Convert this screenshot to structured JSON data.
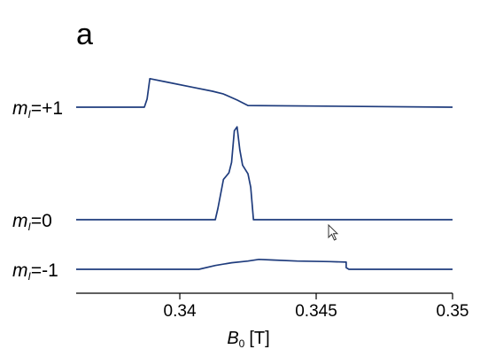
{
  "chart_data": {
    "type": "line",
    "panel_label": "a",
    "xlabel": {
      "symbol": "B",
      "subscript": "0",
      "unit": "[T]"
    },
    "xlim": [
      0.3362,
      0.35
    ],
    "xticks": [
      {
        "value": 0.34,
        "label": "0.34"
      },
      {
        "value": 0.345,
        "label": "0.345"
      },
      {
        "value": 0.35,
        "label": "0.35"
      }
    ],
    "grid": false,
    "series": [
      {
        "name": "m_I=+1",
        "label": {
          "symbol": "m",
          "subscript": "I",
          "value": "=+1"
        },
        "x": [
          0.3362,
          0.3387,
          0.3388,
          0.3389,
          0.3395,
          0.3405,
          0.3412,
          0.3416,
          0.3421,
          0.3425,
          0.35
        ],
        "y": [
          0,
          0,
          0.15,
          0.52,
          0.46,
          0.36,
          0.29,
          0.24,
          0.13,
          0.03,
          0
        ]
      },
      {
        "name": "m_I=0",
        "label": {
          "symbol": "m",
          "subscript": "I",
          "value": "=0"
        },
        "x": [
          0.3362,
          0.3413,
          0.3414,
          0.3416,
          0.3418,
          0.3419,
          0.342,
          0.3421,
          0.3422,
          0.3423,
          0.3425,
          0.3426,
          0.3427,
          0.35
        ],
        "y": [
          0,
          0,
          0.12,
          0.42,
          0.49,
          0.6,
          0.93,
          0.97,
          0.73,
          0.57,
          0.48,
          0.34,
          0,
          0
        ]
      },
      {
        "name": "m_I=-1",
        "label": {
          "symbol": "m",
          "subscript": "I",
          "value": "=-1"
        },
        "x": [
          0.3362,
          0.3407,
          0.3413,
          0.3419,
          0.3425,
          0.3429,
          0.3434,
          0.3443,
          0.3455,
          0.3461,
          0.3461,
          0.3462,
          0.35
        ],
        "y": [
          0,
          0,
          0.07,
          0.12,
          0.15,
          0.18,
          0.17,
          0.15,
          0.14,
          0.13,
          0.03,
          0,
          0
        ]
      }
    ],
    "colors": {
      "trace": "#1f3c7d",
      "axis": "#000000"
    }
  }
}
